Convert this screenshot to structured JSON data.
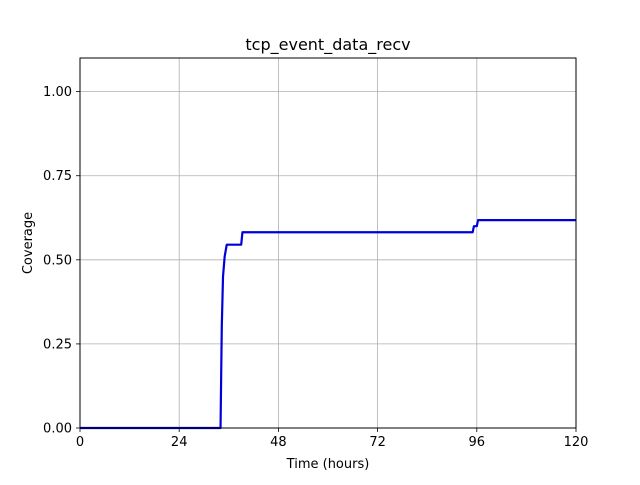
{
  "chart_data": {
    "type": "line",
    "title": "tcp_event_data_recv",
    "xlabel": "Time (hours)",
    "ylabel": "Coverage",
    "xlim": [
      0,
      120
    ],
    "ylim": [
      0,
      1.1
    ],
    "xticks": [
      0,
      24,
      48,
      72,
      96,
      120
    ],
    "yticks": [
      0.0,
      0.25,
      0.5,
      0.75,
      1.0
    ],
    "xtick_labels": [
      "0",
      "24",
      "48",
      "72",
      "96",
      "120"
    ],
    "ytick_labels": [
      "0.00",
      "0.25",
      "0.50",
      "0.75",
      "1.00"
    ],
    "grid": true,
    "series": [
      {
        "color": "#0000dd",
        "x": [
          0,
          34.0,
          34.3,
          34.6,
          35.0,
          35.5,
          36.0,
          39.0,
          39.3,
          95.0,
          95.3,
          96.0,
          96.3,
          120
        ],
        "y": [
          0,
          0,
          0.3,
          0.45,
          0.51,
          0.545,
          0.545,
          0.545,
          0.582,
          0.582,
          0.6,
          0.6,
          0.618,
          0.618
        ]
      }
    ]
  }
}
